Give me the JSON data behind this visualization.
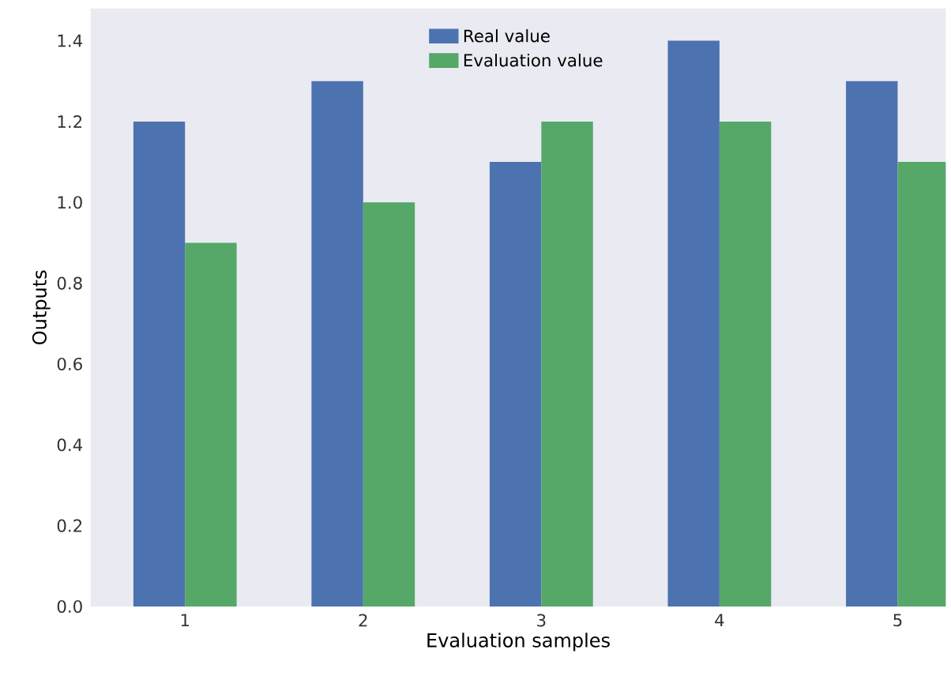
{
  "chart_data": {
    "type": "bar",
    "xlabel": "Evaluation samples",
    "ylabel": "Outputs",
    "categories": [
      "1",
      "2",
      "3",
      "4",
      "5"
    ],
    "series": [
      {
        "name": "Real value",
        "color": "#4c72b0",
        "values": [
          1.2,
          1.3,
          1.1,
          1.4,
          1.3
        ]
      },
      {
        "name": "Evaluation value",
        "color": "#55a868",
        "values": [
          0.9,
          1.0,
          1.2,
          1.2,
          1.1
        ]
      }
    ],
    "ylim": [
      0,
      1.48
    ],
    "yticks": [
      {
        "value": 0,
        "label": "0.0"
      },
      0.2,
      0.4,
      0.6,
      0.8,
      {
        "value": 1,
        "label": "1.0"
      },
      1.2,
      1.4
    ],
    "legend": "top",
    "grid": false
  }
}
